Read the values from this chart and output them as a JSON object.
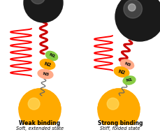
{
  "bg_color": "#ffffff",
  "title_left": "Weak binding",
  "subtitle_left": "Soft, extended state",
  "title_right": "Strong binding",
  "subtitle_right": "Stiff, folded state",
  "text_color": "#000000",
  "spring_color": "#ff0000",
  "linker_color": "#cc0000",
  "n1_color": "#88cc44",
  "n2_color": "#ffaa00",
  "n3_color": "#ffaa88",
  "figsize": [
    2.3,
    1.89
  ],
  "dpi": 100
}
